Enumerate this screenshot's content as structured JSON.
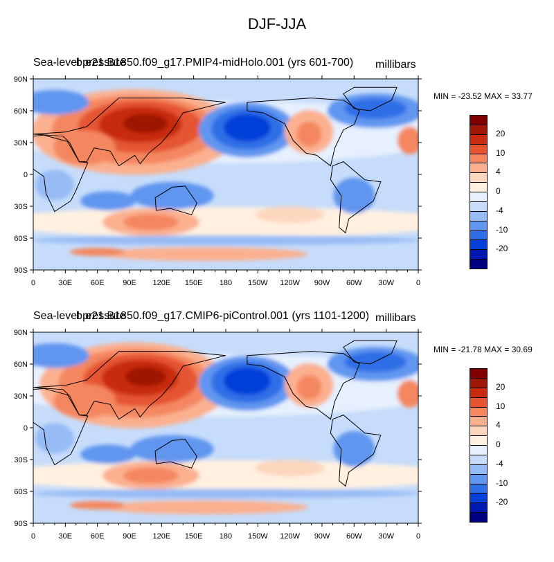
{
  "figure": {
    "title": "DJF-JJA"
  },
  "colors": {
    "levels": [
      "#000080",
      "#0019b0",
      "#0541d9",
      "#2e6ee6",
      "#6096f0",
      "#97bbf5",
      "#c6dcfa",
      "#e6f0fe",
      "#fff0e0",
      "#fdd6be",
      "#fbb090",
      "#f48760",
      "#e55530",
      "#c82b10",
      "#9e1606",
      "#800000"
    ]
  },
  "colorbar": {
    "labels": [
      "20",
      "10",
      "4",
      "0",
      "-4",
      "-10",
      "-20"
    ]
  },
  "axes": {
    "lat_labels": [
      "90N",
      "60N",
      "30N",
      "0",
      "30S",
      "60S",
      "90S"
    ],
    "lon_labels": [
      "0",
      "30E",
      "60E",
      "90E",
      "120E",
      "150E",
      "180",
      "150W",
      "120W",
      "90W",
      "60W",
      "30W",
      "0"
    ]
  },
  "panels": [
    {
      "title_left": "Sea-level pressure",
      "title_center": "b.e21.B1850.f09_g17.PMIP4-midHolo.001 (yrs 601-700)",
      "title_right": "millibars",
      "minmax": "MIN = -23.52 MAX =  33.77"
    },
    {
      "title_left": "Sea-level pressure",
      "title_center": "b.e21.B1850.f09_g17.CMIP6-piControl.001 (yrs 1101-1200)",
      "title_right": "millibars",
      "minmax": "MIN = -21.78 MAX =  30.69"
    }
  ]
}
